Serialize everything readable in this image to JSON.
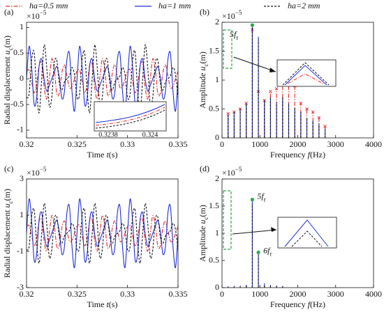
{
  "chart_data": [
    {
      "type": "line",
      "panel": "(a)",
      "exponent": [
        "×10",
        "−5"
      ],
      "xlabel": [
        "Time ",
        "t",
        "(s)"
      ],
      "ylabel": [
        "Radial displacement ",
        "u",
        "c",
        "(m)"
      ],
      "x": [
        0.32,
        0.32025,
        0.3205,
        0.32075,
        0.321,
        0.32125,
        0.3215,
        0.32175,
        0.322,
        0.32225,
        0.3225,
        0.32275,
        0.323,
        0.32325,
        0.3235,
        0.32375,
        0.324,
        0.32425,
        0.3245,
        0.32475,
        0.325,
        0.32525,
        0.3255,
        0.32575,
        0.326,
        0.32625,
        0.3265,
        0.32675,
        0.327,
        0.32725,
        0.3275,
        0.32775,
        0.328,
        0.32825,
        0.3285,
        0.32875,
        0.329,
        0.32925,
        0.3295,
        0.32975,
        0.33,
        0.33025,
        0.3305,
        0.33075,
        0.331,
        0.33125,
        0.3315,
        0.33175,
        0.332,
        0.33225,
        0.3325,
        0.33275,
        0.333,
        0.33325,
        0.3335,
        0.33375,
        0.334,
        0.33425,
        0.3345,
        0.33475,
        0.335
      ],
      "series": [
        {
          "name": "ha=0.5 mm",
          "color": "#e8262a",
          "linestyle": "dashdot",
          "values": [
            0.15,
            0.17,
            -0.05,
            -0.27,
            -0.12,
            0.27,
            0.29,
            -0.17,
            -0.39,
            0,
            0.39,
            0.17,
            -0.29,
            -0.27,
            0.12,
            0.27,
            0.05,
            -0.17,
            -0.15,
            0,
            0.15,
            0.17,
            -0.05,
            -0.27,
            -0.12,
            0.27,
            0.29,
            -0.17,
            -0.39,
            0,
            0.39,
            0.17,
            -0.29,
            -0.27,
            0.12,
            0.27,
            0.05,
            -0.17,
            -0.15,
            0,
            0.15,
            0.17,
            -0.05,
            -0.27,
            -0.12,
            0.27,
            0.29,
            -0.17,
            -0.39,
            0,
            0.39,
            0.17,
            -0.29,
            -0.27,
            0.12,
            0.27,
            0.05,
            -0.17,
            -0.15,
            0,
            0.15
          ]
        },
        {
          "name": "ha=1 mm",
          "color": "#1f2fd6",
          "linestyle": "solid",
          "values": [
            0,
            0.63,
            0.24,
            -0.49,
            -0.38,
            0.25,
            0.38,
            -0.02,
            -0.24,
            -0.13,
            0,
            0.13,
            0.24,
            0.02,
            -0.38,
            -0.25,
            0.38,
            0.49,
            -0.24,
            -0.63,
            0,
            0.63,
            0.24,
            -0.49,
            -0.38,
            0.25,
            0.38,
            -0.02,
            -0.24,
            -0.13,
            0,
            0.13,
            0.24,
            0.02,
            -0.38,
            -0.25,
            0.38,
            0.49,
            -0.24,
            -0.63,
            0,
            0.63,
            0.24,
            -0.49,
            -0.38,
            0.25,
            0.38,
            -0.02,
            -0.24,
            -0.13,
            0,
            0.13,
            0.24,
            0.02,
            -0.38,
            -0.25,
            0.38,
            0.49,
            -0.24,
            -0.63,
            0
          ]
        },
        {
          "name": "ha=2 mm",
          "color": "#111111",
          "linestyle": "dashed",
          "values": [
            -0.36,
            -0.3,
            0.36,
            0.52,
            -0.22,
            -0.66,
            0,
            0.66,
            0.22,
            -0.52,
            -0.36,
            0.3,
            0.36,
            -0.08,
            -0.22,
            -0.06,
            0,
            0.06,
            0.22,
            0.08,
            -0.36,
            -0.3,
            0.36,
            0.52,
            -0.22,
            -0.66,
            0,
            0.66,
            0.22,
            -0.52,
            -0.36,
            0.3,
            0.36,
            -0.08,
            -0.22,
            -0.06,
            0,
            0.06,
            0.22,
            0.08,
            -0.36,
            -0.3,
            0.36,
            0.52,
            -0.22,
            -0.66,
            0,
            0.66,
            0.22,
            -0.52,
            -0.36,
            0.3,
            0.36,
            -0.08,
            -0.22,
            -0.06,
            0,
            0.06,
            0.22,
            0.08,
            -0.36
          ]
        }
      ],
      "xlim": [
        0.32,
        0.335
      ],
      "xticks": [
        0.32,
        0.325,
        0.33,
        0.335
      ],
      "ylim": [
        -1.15,
        1.1
      ],
      "yticks": [
        -1,
        -0.5,
        0,
        0.5,
        1
      ],
      "inset_xticks": [
        0.3238,
        0.324
      ]
    },
    {
      "type": "stem",
      "panel": "(b)",
      "exponent": [
        "×10",
        "−5"
      ],
      "xlabel": [
        "Frequency ",
        "f",
        "(Hz)"
      ],
      "ylabel": [
        "Amplitude ",
        "u",
        "c",
        "(m)"
      ],
      "x": [
        160,
        320,
        480,
        640,
        800,
        960,
        1120,
        1280,
        1440,
        1600,
        1760,
        1920,
        2080,
        2240,
        2400,
        2560,
        2720
      ],
      "series": [
        {
          "color": "#e8262a",
          "linestyle": "dashdot",
          "marker": "x",
          "values": [
            0.42,
            0.45,
            0.5,
            0.6,
            1.87,
            0.8,
            0.65,
            0.8,
            0.85,
            1.0,
            0.95,
            0.9,
            0.6,
            0.5,
            0.45,
            0.35,
            0.2
          ]
        },
        {
          "color": "#1f2fd6",
          "linestyle": "solid",
          "values": [
            0.4,
            0.45,
            0.5,
            0.6,
            1.92,
            1.75,
            0.65,
            0.7,
            0.6,
            0.7,
            0.6,
            0.5,
            0.45,
            0.35,
            0.3,
            0.25,
            0.15
          ]
        },
        {
          "color": "#111111",
          "linestyle": "dashed",
          "values": [
            0.4,
            0.45,
            0.5,
            0.6,
            1.95,
            1.7,
            0.65,
            0.72,
            0.62,
            0.7,
            0.6,
            0.52,
            0.45,
            0.35,
            0.3,
            0.25,
            0.15
          ]
        }
      ],
      "xlim": [
        0,
        4000
      ],
      "xticks": [
        0,
        1000,
        2000,
        3000,
        4000
      ],
      "ylim": [
        0,
        2
      ],
      "yticks": [
        0,
        0.5,
        1,
        1.5,
        2
      ],
      "annotations": [
        {
          "text": "5f",
          "sub": "r"
        }
      ]
    },
    {
      "type": "line",
      "panel": "(c)",
      "exponent": [
        "×10",
        "−5"
      ],
      "xlabel": [
        "Time ",
        "t",
        "(s)"
      ],
      "ylabel": [
        "Radial displacement ",
        "u",
        "c",
        "(m)"
      ],
      "x": [
        0.32,
        0.32025,
        0.3205,
        0.32075,
        0.321,
        0.32125,
        0.3215,
        0.32175,
        0.322,
        0.32225,
        0.3225,
        0.32275,
        0.323,
        0.32325,
        0.3235,
        0.32375,
        0.324,
        0.32425,
        0.3245,
        0.32475,
        0.325,
        0.32525,
        0.3255,
        0.32575,
        0.326,
        0.32625,
        0.3265,
        0.32675,
        0.327,
        0.32725,
        0.3275,
        0.32775,
        0.328,
        0.32825,
        0.3285,
        0.32875,
        0.329,
        0.32925,
        0.3295,
        0.32975,
        0.33,
        0.33025,
        0.3305,
        0.33075,
        0.331,
        0.33125,
        0.3315,
        0.33175,
        0.332,
        0.33225,
        0.3325,
        0.33275,
        0.333,
        0.33325,
        0.3335,
        0.33375,
        0.334,
        0.33425,
        0.3345,
        0.33475,
        0.335
      ],
      "series": [
        {
          "color": "#e8262a",
          "linestyle": "dashdot",
          "values": [
            0.38,
            0.43,
            -0.13,
            -0.68,
            -0.3,
            0.68,
            0.73,
            -0.43,
            -0.98,
            0,
            0.98,
            0.43,
            -0.73,
            -0.68,
            0.3,
            0.68,
            0.13,
            -0.43,
            -0.38,
            0,
            0.38,
            0.43,
            -0.13,
            -0.68,
            -0.3,
            0.68,
            0.73,
            -0.43,
            -0.98,
            0,
            0.98,
            0.43,
            -0.73,
            -0.68,
            0.3,
            0.68,
            0.13,
            -0.43,
            -0.38,
            0,
            0.38,
            0.43,
            -0.13,
            -0.68,
            -0.3,
            0.68,
            0.73,
            -0.43,
            -0.98,
            0,
            0.98,
            0.43,
            -0.73,
            -0.68,
            0.3,
            0.68,
            0.13,
            -0.43,
            -0.38,
            0,
            0.38
          ]
        },
        {
          "color": "#1f2fd6",
          "linestyle": "solid",
          "values": [
            0,
            1.89,
            0.72,
            -1.47,
            -1.14,
            0.75,
            1.14,
            -0.06,
            -0.72,
            -0.39,
            0,
            0.39,
            0.72,
            0.06,
            -1.14,
            -0.75,
            1.14,
            1.47,
            -0.72,
            -1.89,
            0,
            1.89,
            0.72,
            -1.47,
            -1.14,
            0.75,
            1.14,
            -0.06,
            -0.72,
            -0.39,
            0,
            0.39,
            0.72,
            0.06,
            -1.14,
            -0.75,
            1.14,
            1.47,
            -0.72,
            -1.89,
            0,
            1.89,
            0.72,
            -1.47,
            -1.14,
            0.75,
            1.14,
            -0.06,
            -0.72,
            -0.39,
            0,
            0.39,
            0.72,
            0.06,
            -1.14,
            -0.75,
            1.14,
            1.47,
            -0.72,
            -1.89,
            0
          ]
        },
        {
          "color": "#111111",
          "linestyle": "dashed",
          "values": [
            -0.9,
            -0.75,
            0.9,
            1.3,
            -0.55,
            -1.65,
            0,
            1.65,
            0.55,
            -1.3,
            -0.9,
            0.75,
            0.9,
            -0.2,
            -0.55,
            -0.15,
            0,
            0.15,
            0.55,
            0.2,
            -0.9,
            -0.75,
            0.9,
            1.3,
            -0.55,
            -1.65,
            0,
            1.65,
            0.55,
            -1.3,
            -0.9,
            0.75,
            0.9,
            -0.2,
            -0.55,
            -0.15,
            0,
            0.15,
            0.55,
            0.2,
            -0.9,
            -0.75,
            0.9,
            1.3,
            -0.55,
            -1.65,
            0,
            1.65,
            0.55,
            -1.3,
            -0.9,
            0.75,
            0.9,
            -0.2,
            -0.55,
            -0.15,
            0,
            0.15,
            0.55,
            0.2,
            -0.9
          ]
        }
      ],
      "xlim": [
        0.32,
        0.335
      ],
      "xticks": [
        0.32,
        0.325,
        0.33,
        0.335
      ],
      "ylim": [
        -3,
        3
      ],
      "yticks": [
        -3,
        -1,
        1,
        3
      ]
    },
    {
      "type": "stem",
      "panel": "(d)",
      "exponent": [
        "×10",
        "−5"
      ],
      "xlabel": [
        "Frequency ",
        "f",
        "(Hz)"
      ],
      "ylabel": [
        "Amplitude ",
        "u",
        "c",
        "(m)"
      ],
      "x": [
        160,
        320,
        480,
        640,
        800,
        960,
        1120,
        1280,
        1440,
        1600
      ],
      "series": [
        {
          "color": "#e8262a",
          "linestyle": "dashdot",
          "values": [
            0.01,
            0.01,
            0.02,
            0.02,
            0.03,
            0.03,
            0.02,
            0.02,
            0.01,
            0.01
          ]
        },
        {
          "color": "#1f2fd6",
          "linestyle": "solid",
          "values": [
            0.02,
            0.03,
            0.03,
            0.05,
            1.62,
            0.65,
            0.08,
            0.05,
            0.04,
            0.03
          ]
        },
        {
          "color": "#111111",
          "linestyle": "dashed",
          "values": [
            0.02,
            0.02,
            0.03,
            0.04,
            1.55,
            0.6,
            0.06,
            0.04,
            0.03,
            0.02
          ]
        }
      ],
      "xlim": [
        0,
        4000
      ],
      "xticks": [
        0,
        1000,
        2000,
        3000,
        4000
      ],
      "ylim": [
        0,
        2
      ],
      "yticks": [
        0,
        0.5,
        1,
        1.5,
        2
      ],
      "annotations": [
        {
          "text": "5f",
          "sub": "r"
        },
        {
          "text": "6f",
          "sub": "r"
        }
      ]
    }
  ]
}
